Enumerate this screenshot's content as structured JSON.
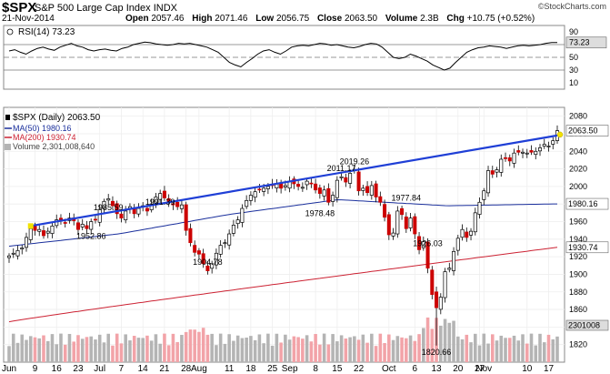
{
  "header": {
    "symbol": "$SPX",
    "name": "S&P 500 Large Cap Index",
    "exchange": "INDX",
    "date": "21-Nov-2014",
    "open_label": "Open",
    "open": "2057.46",
    "high_label": "High",
    "high": "2071.46",
    "low_label": "Low",
    "low": "2056.75",
    "close_label": "Close",
    "close": "2063.50",
    "volume_label": "Volume",
    "volume": "2.3B",
    "chg_label": "Chg",
    "chg": "+10.75 (+0.52%)",
    "copyright": "©StockCharts.com"
  },
  "colors": {
    "up": "#000000",
    "down_fill": "#cc0000",
    "ma50": "#1a2f9c",
    "ma200": "#cc2233",
    "trendline": "#1f3fd6",
    "vol_up": "#b4b4b4",
    "vol_down": "#f2a3a8"
  },
  "chart_data": [
    {
      "type": "line",
      "panel": "RSI",
      "title": "RSI(14) 73.23",
      "current_label": "73.23",
      "ylim": [
        0,
        100
      ],
      "ticks": [
        90,
        70,
        50,
        30,
        10
      ],
      "reference_lines": [
        70,
        50,
        30
      ],
      "values": [
        60,
        62,
        58,
        55,
        60,
        64,
        66,
        63,
        61,
        66,
        69,
        72,
        68,
        66,
        62,
        60,
        62,
        63,
        61,
        60,
        64,
        66,
        70,
        72,
        74,
        73,
        71,
        70,
        69,
        70,
        72,
        71,
        72,
        70,
        68,
        66,
        62,
        58,
        50,
        42,
        38,
        35,
        42,
        48,
        55,
        60,
        62,
        58,
        55,
        60,
        66,
        68,
        69,
        68,
        70,
        72,
        71,
        69,
        70,
        68,
        66,
        65,
        67,
        70,
        72,
        71,
        66,
        58,
        50,
        48,
        50,
        55,
        52,
        48,
        44,
        38,
        34,
        30,
        33,
        42,
        50,
        58,
        62,
        65,
        66,
        68,
        67,
        66,
        64,
        66,
        68,
        69,
        68,
        69,
        70,
        72,
        73.23,
        73.23
      ]
    },
    {
      "type": "candlestick",
      "panel": "price",
      "title": "$SPX (Daily) 2063.50",
      "ylim": [
        1800,
        2090
      ],
      "ticks": [
        2080,
        2060,
        2040,
        2020,
        2000,
        1980,
        1960,
        1940,
        1920,
        1900,
        1880,
        1860,
        1840,
        1820
      ],
      "x_labels": [
        {
          "i": 0,
          "label": "Jun"
        },
        {
          "i": 6,
          "label": "9"
        },
        {
          "i": 11,
          "label": "16"
        },
        {
          "i": 16,
          "label": "23"
        },
        {
          "i": 21,
          "label": "Jul"
        },
        {
          "i": 26,
          "label": "7"
        },
        {
          "i": 31,
          "label": "14"
        },
        {
          "i": 36,
          "label": "21"
        },
        {
          "i": 41,
          "label": "28"
        },
        {
          "i": 44,
          "label": "Aug"
        },
        {
          "i": 51,
          "label": "11"
        },
        {
          "i": 56,
          "label": "18"
        },
        {
          "i": 61,
          "label": "25"
        },
        {
          "i": 65,
          "label": "Sep"
        },
        {
          "i": 71,
          "label": "8"
        },
        {
          "i": 76,
          "label": "15"
        },
        {
          "i": 81,
          "label": "22"
        },
        {
          "i": 88,
          "label": "Oct"
        },
        {
          "i": 94,
          "label": "6"
        },
        {
          "i": 99,
          "label": "13"
        },
        {
          "i": 104,
          "label": "20"
        },
        {
          "i": 109,
          "label": "27"
        },
        {
          "i": 110,
          "label": "Nov"
        },
        {
          "i": 120,
          "label": "10"
        },
        {
          "i": 125,
          "label": "17"
        }
      ],
      "closes": [
        1921,
        1924,
        1927,
        1930,
        1942,
        1952,
        1950,
        1951,
        1944,
        1949,
        1955,
        1962,
        1962,
        1959,
        1964,
        1961,
        1951,
        1957,
        1952,
        1960,
        1962,
        1974,
        1983,
        1986,
        1978,
        1969,
        1964,
        1972,
        1977,
        1969,
        1975,
        1978,
        1972,
        1980,
        1988,
        1992,
        1987,
        1982,
        1979,
        1977,
        1979,
        1950,
        1936,
        1925,
        1923,
        1912,
        1904,
        1912,
        1924,
        1933,
        1936,
        1946,
        1956,
        1962,
        1975,
        1984,
        1990,
        1994,
        1996,
        1998,
        2000,
        2001,
        2003,
        1998,
        2001,
        2006,
        2003,
        2000,
        1999,
        2006,
        2003,
        1996,
        1992,
        1996,
        1982,
        1990,
        2007,
        2011,
        2005,
        2015,
        2019,
        1995,
        1998,
        1993,
        2001,
        1988,
        1982,
        1965,
        1945,
        1947,
        1972,
        1968,
        1952,
        1964,
        1946,
        1928,
        1937,
        1907,
        1877,
        1862,
        1874,
        1903,
        1907,
        1926,
        1941,
        1951,
        1942,
        1949,
        1970,
        1982,
        1995,
        2018,
        2014,
        2019,
        2031,
        2032,
        2029,
        2038,
        2039,
        2039,
        2038,
        2039,
        2040,
        2044,
        2048,
        2046,
        2052,
        2063.5
      ],
      "annotations": [
        {
          "i": 23,
          "label": "1985.59"
        },
        {
          "i": 19,
          "label": "1952.86"
        },
        {
          "i": 35,
          "label": "1991.39"
        },
        {
          "i": 46,
          "label": "1904.78"
        },
        {
          "i": 77,
          "label": "2011.17"
        },
        {
          "i": 72,
          "label": "1978.48"
        },
        {
          "i": 80,
          "label": "2019.26"
        },
        {
          "i": 92,
          "label": "1977.84"
        },
        {
          "i": 97,
          "label": "1926.03"
        },
        {
          "i": 99,
          "label": "1820.66"
        }
      ],
      "last_price_label": "2063.50",
      "ma50": {
        "label": "MA(50) 1980.16",
        "axis_label": "1980.16",
        "start": 1932,
        "mid": [
          1946,
          1968,
          1985,
          1978,
          1980.16
        ]
      },
      "ma200": {
        "label": "MA(200) 1930.74",
        "axis_label": "1930.74",
        "start": 1846,
        "end": 1930.74
      },
      "trendline": {
        "from": {
          "i": 5,
          "v": 1955
        },
        "to": {
          "i": 127,
          "v": 2058
        }
      },
      "volume": {
        "label": "Volume 2,301,008,640",
        "axis_label": "2301008"
      }
    }
  ]
}
